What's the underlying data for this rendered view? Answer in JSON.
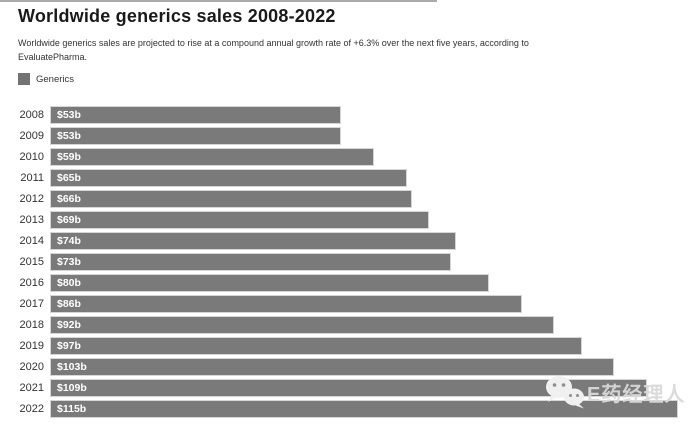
{
  "header": {
    "title": "Worldwide generics sales 2008-2022",
    "subtitle_line1": "Worldwide generics sales are projected to rise at a compound annual growth rate of +6.3% over the next five years, according to",
    "subtitle_line2": "EvaluatePharma."
  },
  "legend": {
    "label": "Generics",
    "swatch_color": "#737373"
  },
  "watermark": {
    "icon": "wechat-logo-icon",
    "text": "E药经理人"
  },
  "chart_data": {
    "type": "bar",
    "orientation": "horizontal",
    "title": "Worldwide generics sales 2008-2022",
    "categories": [
      "2008",
      "2009",
      "2010",
      "2011",
      "2012",
      "2013",
      "2014",
      "2015",
      "2016",
      "2017",
      "2018",
      "2019",
      "2020",
      "2021",
      "2022"
    ],
    "values": [
      53,
      53,
      59,
      65,
      66,
      69,
      74,
      73,
      80,
      86,
      92,
      97,
      103,
      109,
      115
    ],
    "data_labels": [
      "$53b",
      "$53b",
      "$59b",
      "$65b",
      "$66b",
      "$69b",
      "$74b",
      "$73b",
      "$80b",
      "$86b",
      "$92b",
      "$97b",
      "$103b",
      "$109b",
      "$115b"
    ],
    "xlim": [
      0,
      115
    ],
    "bar_color": "#7a7a7a",
    "grid": false,
    "legend_position": "top-left"
  }
}
